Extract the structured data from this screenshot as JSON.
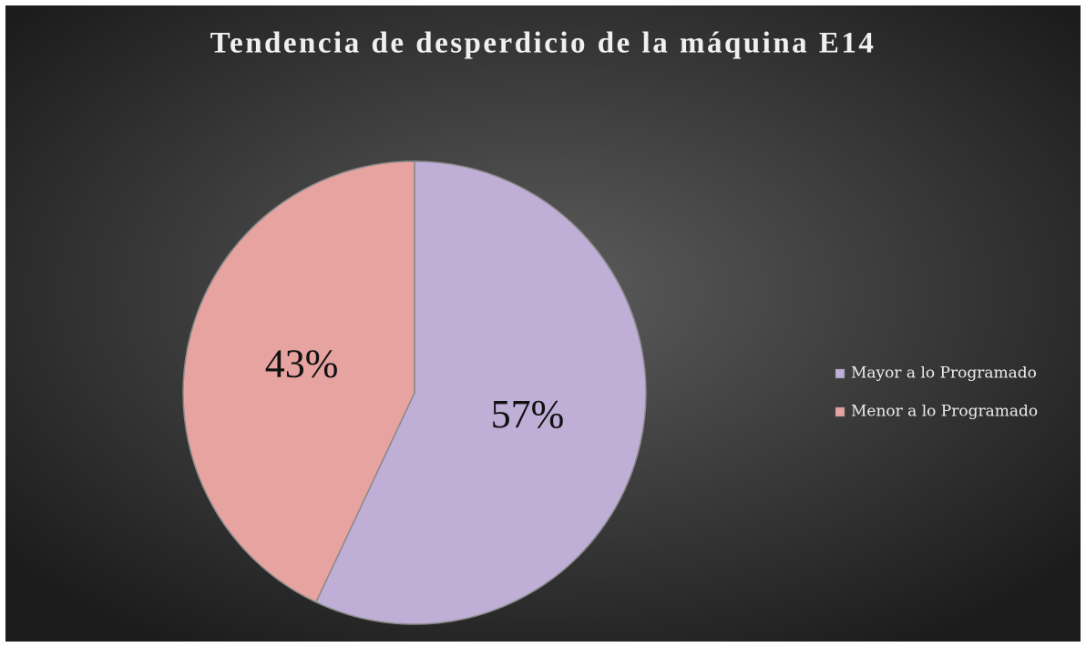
{
  "chart_data": {
    "type": "pie",
    "title": "Tendencia de desperdicio de la máquina E14",
    "categories": [
      "Mayor a lo Programado",
      "Menor a lo Programado"
    ],
    "values": [
      57,
      43
    ],
    "value_labels": [
      "57%",
      "43%"
    ],
    "colors": [
      "#bfaed6",
      "#e6a3a0"
    ],
    "legend": "right"
  }
}
